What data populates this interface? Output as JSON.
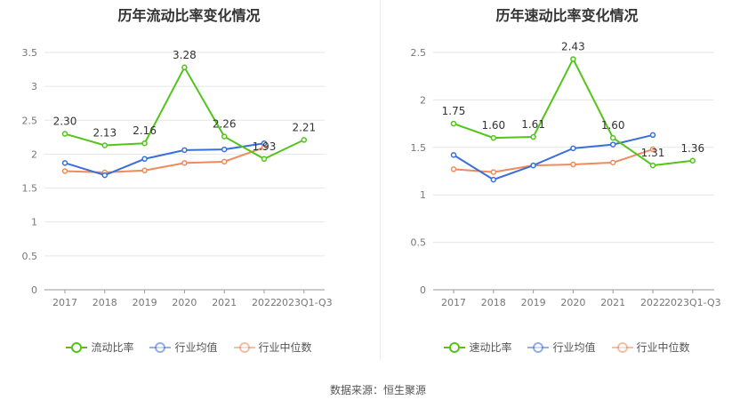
{
  "source_label": "数据来源：恒生聚源",
  "chart_data": [
    {
      "type": "line",
      "title": "历年流动比率变化情况",
      "categories": [
        "2017",
        "2018",
        "2019",
        "2020",
        "2021",
        "2022",
        "2023Q1-Q3"
      ],
      "ylim": [
        0,
        3.5
      ],
      "yticks": [
        "0",
        "0.5",
        "1",
        "1.5",
        "2",
        "2.5",
        "3",
        "3.5"
      ],
      "ytick_values": [
        0,
        0.5,
        1,
        1.5,
        2,
        2.5,
        3,
        3.5
      ],
      "series": [
        {
          "name": "流动比率",
          "color": "#52c41a",
          "values": [
            2.3,
            2.13,
            2.16,
            3.28,
            2.26,
            1.93,
            2.21
          ],
          "labels": [
            "2.30",
            "2.13",
            "2.16",
            "3.28",
            "2.26",
            "1.93",
            "2.21"
          ]
        },
        {
          "name": "行业均值",
          "color": "#3a6fd8",
          "values": [
            1.87,
            1.69,
            1.93,
            2.06,
            2.07,
            2.16,
            null
          ]
        },
        {
          "name": "行业中位数",
          "color": "#ef8a5d",
          "values": [
            1.75,
            1.73,
            1.76,
            1.87,
            1.89,
            2.1,
            null
          ]
        }
      ]
    },
    {
      "type": "line",
      "title": "历年速动比率变化情况",
      "categories": [
        "2017",
        "2018",
        "2019",
        "2020",
        "2021",
        "2022",
        "2023Q1-Q3"
      ],
      "ylim": [
        0,
        2.5
      ],
      "yticks": [
        "0",
        "0.5",
        "1",
        "1.5",
        "2",
        "2.5"
      ],
      "ytick_values": [
        0,
        0.5,
        1,
        1.5,
        2,
        2.5
      ],
      "series": [
        {
          "name": "速动比率",
          "color": "#52c41a",
          "values": [
            1.75,
            1.6,
            1.61,
            2.43,
            1.6,
            1.31,
            1.36
          ],
          "labels": [
            "1.75",
            "1.60",
            "1.61",
            "2.43",
            "1.60",
            "1.31",
            "1.36"
          ]
        },
        {
          "name": "行业均值",
          "color": "#3a6fd8",
          "values": [
            1.42,
            1.16,
            1.31,
            1.49,
            1.53,
            1.63,
            null
          ]
        },
        {
          "name": "行业中位数",
          "color": "#ef8a5d",
          "values": [
            1.27,
            1.24,
            1.31,
            1.32,
            1.34,
            1.48,
            null
          ]
        }
      ]
    }
  ]
}
